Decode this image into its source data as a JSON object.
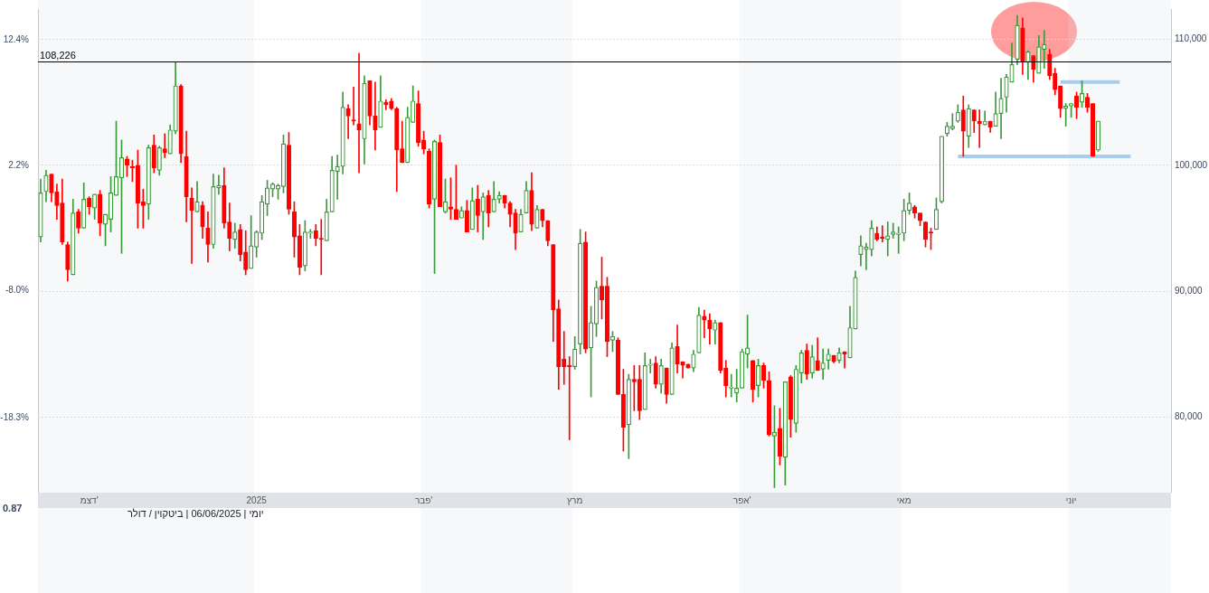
{
  "chart_data": {
    "type": "candlestick",
    "categories": [
      null,
      null,
      null,
      null,
      null,
      null,
      null,
      null,
      null,
      "דצמ'",
      null,
      null,
      null,
      null,
      null,
      null,
      null,
      null,
      null,
      null,
      null,
      null,
      null,
      null,
      null,
      null,
      null,
      null,
      null,
      null,
      null,
      null,
      null,
      null,
      null,
      null,
      null,
      null,
      null,
      null,
      "2025",
      null,
      null,
      null,
      null,
      null,
      null,
      null,
      null,
      null,
      null,
      null,
      null,
      null,
      null,
      null,
      null,
      null,
      null,
      null,
      null,
      null,
      null,
      null,
      null,
      null,
      null,
      null,
      null,
      null,
      null,
      "פבר'",
      null,
      null,
      null,
      null,
      null,
      null,
      null,
      null,
      null,
      null,
      null,
      null,
      null,
      null,
      null,
      null,
      null,
      null,
      null,
      null,
      null,
      null,
      null,
      null,
      null,
      null,
      null,
      "מרץ",
      null,
      null,
      null,
      null,
      null,
      null,
      null,
      null,
      null,
      null,
      null,
      null,
      null,
      null,
      null,
      null,
      null,
      null,
      null,
      null,
      null,
      null,
      null,
      null,
      null,
      null,
      null,
      null,
      null,
      null,
      "אפר'",
      null,
      null,
      null,
      null,
      null,
      null,
      null,
      null,
      null,
      null,
      null,
      null,
      null,
      null,
      null,
      null,
      null,
      null,
      null,
      null,
      null,
      null,
      null,
      null,
      null,
      null,
      null,
      null,
      null,
      "מאי",
      null,
      null,
      null,
      null,
      null,
      null,
      null,
      null,
      null,
      null,
      null,
      null,
      null,
      null,
      null,
      null,
      null,
      null,
      null,
      null,
      null,
      null,
      null,
      null,
      null,
      null,
      null,
      null,
      null,
      null,
      "יוני",
      null,
      null,
      null,
      null,
      null,
      null,
      null,
      null,
      null,
      null,
      null,
      null,
      null,
      null,
      null,
      null,
      null,
      null
    ],
    "ohlc": [
      [
        94300,
        98900,
        93900,
        97800
      ],
      [
        97900,
        99600,
        97100,
        99200
      ],
      [
        99300,
        99300,
        97100,
        97800
      ],
      [
        97900,
        98500,
        95700,
        96800
      ],
      [
        97000,
        98900,
        93700,
        93900
      ],
      [
        93700,
        93900,
        90800,
        91700
      ],
      [
        91300,
        97300,
        91300,
        96200
      ],
      [
        96300,
        96500,
        94600,
        95000
      ],
      [
        95000,
        98600,
        95000,
        97300
      ],
      [
        97400,
        97500,
        96100,
        96700
      ],
      [
        96600,
        97700,
        95700,
        97700
      ],
      [
        97700,
        98000,
        94400,
        95400
      ],
      [
        95300,
        96100,
        93600,
        96100
      ],
      [
        95700,
        99100,
        94700,
        97800
      ],
      [
        97600,
        103500,
        97600,
        99100
      ],
      [
        99000,
        102000,
        93000,
        100600
      ],
      [
        100500,
        100700,
        99100,
        100000
      ],
      [
        99900,
        100400,
        98700,
        99800
      ],
      [
        100000,
        101200,
        95000,
        97000
      ],
      [
        97100,
        98100,
        95000,
        96800
      ],
      [
        96900,
        101600,
        95700,
        101400
      ],
      [
        101600,
        102400,
        99400,
        99800
      ],
      [
        99600,
        101500,
        99200,
        101400
      ],
      [
        101300,
        102500,
        100600,
        101000
      ],
      [
        100900,
        103200,
        100900,
        102800
      ],
      [
        102700,
        108200,
        102500,
        106300
      ],
      [
        106300,
        106400,
        100200,
        100900
      ],
      [
        100700,
        102700,
        95500,
        97500
      ],
      [
        97400,
        98200,
        92200,
        96400
      ],
      [
        96300,
        98700,
        96300,
        97100
      ],
      [
        96800,
        97100,
        94200,
        95100
      ],
      [
        95000,
        96300,
        92300,
        93700
      ],
      [
        93700,
        99300,
        93400,
        98300
      ],
      [
        98200,
        99200,
        97700,
        98400
      ],
      [
        98400,
        99800,
        95000,
        95400
      ],
      [
        95500,
        97000,
        93200,
        94200
      ],
      [
        94100,
        95400,
        93400,
        94700
      ],
      [
        94900,
        95300,
        92400,
        92900
      ],
      [
        93100,
        94800,
        91300,
        91700
      ],
      [
        91800,
        96000,
        91800,
        93600
      ],
      [
        93500,
        94800,
        92700,
        94700
      ],
      [
        94600,
        97600,
        94100,
        97100
      ],
      [
        96900,
        98800,
        96000,
        98200
      ],
      [
        98100,
        98600,
        97500,
        98500
      ],
      [
        98100,
        98500,
        97300,
        98400
      ],
      [
        98300,
        102400,
        97800,
        101700
      ],
      [
        101600,
        102600,
        96100,
        96500
      ],
      [
        96300,
        97100,
        92700,
        94300
      ],
      [
        94400,
        95300,
        91300,
        91900
      ],
      [
        92000,
        95600,
        91600,
        94700
      ],
      [
        94600,
        94900,
        94200,
        94700
      ],
      [
        94800,
        95300,
        93600,
        94200
      ],
      [
        94200,
        95700,
        91300,
        94100
      ],
      [
        94000,
        97300,
        94000,
        96300
      ],
      [
        96300,
        100700,
        96300,
        99600
      ],
      [
        99500,
        100800,
        97300,
        99900
      ],
      [
        99900,
        105800,
        99300,
        104600
      ],
      [
        104500,
        104800,
        102100,
        103900
      ],
      [
        103600,
        106200,
        103200,
        103500
      ],
      [
        103300,
        108900,
        99400,
        102800
      ],
      [
        102100,
        107100,
        100100,
        106500
      ],
      [
        106700,
        106700,
        103200,
        103900
      ],
      [
        103900,
        106600,
        101200,
        102800
      ],
      [
        103000,
        107100,
        103000,
        105100
      ],
      [
        105000,
        105200,
        104400,
        104800
      ],
      [
        105100,
        105300,
        104400,
        104500
      ],
      [
        104500,
        104600,
        97900,
        101200
      ],
      [
        101300,
        103500,
        100200,
        100200
      ],
      [
        100200,
        104600,
        100200,
        103800
      ],
      [
        103400,
        106300,
        103400,
        105100
      ],
      [
        104900,
        105900,
        101500,
        101800
      ],
      [
        102000,
        102700,
        100900,
        101300
      ],
      [
        101100,
        101300,
        96600,
        96900
      ],
      [
        97300,
        102000,
        91400,
        101900
      ],
      [
        101800,
        102400,
        96700,
        96700
      ],
      [
        96300,
        98900,
        96200,
        97100
      ],
      [
        96700,
        99000,
        95700,
        96500
      ],
      [
        96500,
        100000,
        95700,
        95700
      ],
      [
        95800,
        96700,
        95800,
        96400
      ],
      [
        96400,
        97200,
        94700,
        94700
      ],
      [
        94900,
        98200,
        94900,
        97200
      ],
      [
        97300,
        98400,
        94700,
        96000
      ],
      [
        96300,
        97800,
        94100,
        97500
      ],
      [
        97600,
        98000,
        95100,
        96200
      ],
      [
        96300,
        98700,
        96300,
        97300
      ],
      [
        97300,
        97900,
        97000,
        97600
      ],
      [
        97600,
        97600,
        96600,
        97000
      ],
      [
        97000,
        97100,
        95100,
        96100
      ],
      [
        96200,
        96500,
        93300,
        94600
      ],
      [
        94700,
        96500,
        94700,
        96100
      ],
      [
        96200,
        98700,
        96200,
        98000
      ],
      [
        98000,
        99400,
        94800,
        95300
      ],
      [
        95000,
        96800,
        95000,
        96500
      ],
      [
        96500,
        96500,
        95100,
        95600
      ],
      [
        95600,
        95600,
        93600,
        94000
      ],
      [
        93700,
        93700,
        86000,
        88500
      ],
      [
        88600,
        89300,
        82200,
        84000
      ],
      [
        84600,
        86800,
        82600,
        84000
      ],
      [
        84100,
        84800,
        78200,
        84000
      ],
      [
        84000,
        86400,
        83800,
        85400
      ],
      [
        85800,
        94900,
        85000,
        93800
      ],
      [
        93900,
        94700,
        85100,
        85400
      ],
      [
        85500,
        88800,
        81600,
        87500
      ],
      [
        87400,
        90800,
        86400,
        90300
      ],
      [
        90400,
        92700,
        87800,
        89300
      ],
      [
        90400,
        91100,
        84800,
        86000
      ],
      [
        86100,
        86800,
        85200,
        86400
      ],
      [
        86100,
        86300,
        81800,
        81800
      ],
      [
        81800,
        83800,
        77300,
        79200
      ],
      [
        79400,
        83400,
        76700,
        83000
      ],
      [
        83000,
        84100,
        80500,
        82800
      ],
      [
        83000,
        84100,
        79800,
        80500
      ],
      [
        80600,
        85100,
        80600,
        84100
      ],
      [
        84100,
        84600,
        83500,
        84200
      ],
      [
        84300,
        84800,
        82300,
        82600
      ],
      [
        82600,
        84600,
        81900,
        84100
      ],
      [
        83900,
        83900,
        81100,
        81800
      ],
      [
        81800,
        85900,
        81800,
        85500
      ],
      [
        85600,
        87300,
        83500,
        84200
      ],
      [
        84400,
        84400,
        83100,
        84100
      ],
      [
        84200,
        84200,
        83900,
        83900
      ],
      [
        83900,
        85300,
        83600,
        85000
      ],
      [
        85100,
        88700,
        85100,
        88100
      ],
      [
        88000,
        88500,
        86300,
        87700
      ],
      [
        87700,
        88200,
        85800,
        87000
      ],
      [
        86900,
        87700,
        85800,
        87500
      ],
      [
        87500,
        87500,
        83500,
        83700
      ],
      [
        83900,
        84500,
        81600,
        82500
      ],
      [
        82300,
        83400,
        81600,
        82400
      ],
      [
        81900,
        83800,
        81200,
        82300
      ],
      [
        82300,
        85400,
        82300,
        85200
      ],
      [
        85000,
        88100,
        83900,
        85500
      ],
      [
        84500,
        84500,
        81200,
        82200
      ],
      [
        82500,
        84600,
        81600,
        84100
      ],
      [
        84100,
        84300,
        82300,
        82900
      ],
      [
        82900,
        83600,
        78500,
        78600
      ],
      [
        78500,
        80900,
        74400,
        78800
      ],
      [
        79100,
        80700,
        76200,
        76900
      ],
      [
        76800,
        82800,
        74600,
        82800
      ],
      [
        83200,
        83300,
        78400,
        79800
      ],
      [
        79500,
        84100,
        78800,
        83800
      ],
      [
        83500,
        85300,
        82700,
        85100
      ],
      [
        85300,
        85800,
        83000,
        83400
      ],
      [
        83500,
        85700,
        83100,
        84800
      ],
      [
        84500,
        86300,
        83700,
        83700
      ],
      [
        83800,
        85400,
        83000,
        84300
      ],
      [
        84500,
        85400,
        83800,
        85000
      ],
      [
        84900,
        84900,
        84300,
        84400
      ],
      [
        84500,
        85500,
        84300,
        85100
      ],
      [
        85200,
        85200,
        83900,
        85000
      ],
      [
        84700,
        88800,
        84700,
        87100
      ],
      [
        87000,
        91600,
        87000,
        91100
      ],
      [
        92900,
        94400,
        92000,
        93600
      ],
      [
        93300,
        93800,
        91700,
        93500
      ],
      [
        93300,
        95600,
        92800,
        95000
      ],
      [
        94600,
        95100,
        94000,
        94100
      ],
      [
        94300,
        95200,
        93900,
        94200
      ],
      [
        94100,
        95500,
        92800,
        94400
      ],
      [
        94500,
        95400,
        94200,
        94700
      ],
      [
        94500,
        95100,
        93000,
        94600
      ],
      [
        94600,
        97300,
        94000,
        96400
      ],
      [
        96400,
        97800,
        96100,
        97000
      ],
      [
        96700,
        96800,
        95800,
        96200
      ],
      [
        96200,
        96200,
        95200,
        95600
      ],
      [
        95500,
        95500,
        93500,
        94100
      ],
      [
        94700,
        95000,
        93300,
        94600
      ],
      [
        94900,
        97400,
        94900,
        96500
      ],
      [
        97100,
        102300,
        97000,
        102300
      ],
      [
        102500,
        103400,
        102300,
        103100
      ],
      [
        102900,
        104100,
        102800,
        103100
      ],
      [
        103500,
        104800,
        103400,
        104200
      ],
      [
        104400,
        105500,
        100700,
        102700
      ],
      [
        102300,
        104800,
        101400,
        104500
      ],
      [
        104400,
        104400,
        102600,
        103500
      ],
      [
        103500,
        104400,
        101400,
        103300
      ],
      [
        103200,
        104300,
        103200,
        103500
      ],
      [
        103500,
        103500,
        102600,
        103000
      ],
      [
        103100,
        105800,
        103100,
        104100
      ],
      [
        104100,
        106900,
        102100,
        105300
      ],
      [
        105400,
        107200,
        104200,
        107000
      ],
      [
        106600,
        109700,
        106600,
        108000
      ],
      [
        108400,
        111900,
        108000,
        111100
      ],
      [
        110900,
        111700,
        107200,
        108200
      ],
      [
        108200,
        109100,
        106800,
        109000
      ],
      [
        108700,
        108700,
        106600,
        107600
      ],
      [
        107300,
        110300,
        107300,
        109400
      ],
      [
        109200,
        110700,
        107700,
        109600
      ],
      [
        108800,
        109200,
        106800,
        107100
      ],
      [
        107300,
        107700,
        105600,
        106000
      ],
      [
        106300,
        106300,
        103800,
        104500
      ],
      [
        104500,
        104900,
        103100,
        104700
      ],
      [
        104700,
        104900,
        103800,
        104900
      ],
      [
        105500,
        105800,
        103700,
        104600
      ],
      [
        105000,
        106700,
        104600,
        105700
      ],
      [
        105400,
        105700,
        104200,
        104600
      ],
      [
        104900,
        104900,
        100700,
        100700
      ],
      [
        101200,
        103500,
        101100,
        103500
      ],
      null,
      null,
      null,
      null,
      null,
      null,
      null,
      null,
      null,
      null,
      null,
      null,
      null
    ],
    "series": [
      {
        "type": "line",
        "color": "#a8cdf0",
        "values": [
          null,
          null,
          null,
          null,
          null,
          null,
          null,
          null,
          null,
          null,
          null,
          null,
          null,
          null,
          null,
          null,
          null,
          null,
          null,
          null,
          null,
          null,
          null,
          null,
          null,
          null,
          null,
          null,
          null,
          null,
          null,
          null,
          null,
          null,
          null,
          null,
          null,
          null,
          null,
          null,
          null,
          null,
          null,
          null,
          null,
          null,
          null,
          null,
          null,
          null,
          null,
          null,
          null,
          null,
          null,
          null,
          null,
          null,
          null,
          null,
          null,
          null,
          null,
          null,
          null,
          null,
          null,
          null,
          null,
          null,
          null,
          null,
          null,
          null,
          null,
          null,
          null,
          null,
          null,
          null,
          null,
          null,
          null,
          null,
          null,
          null,
          null,
          null,
          null,
          null,
          null,
          null,
          null,
          null,
          null,
          null,
          null,
          null,
          null,
          null,
          null,
          null,
          null,
          null,
          null,
          null,
          null,
          null,
          null,
          null,
          null,
          null,
          null,
          null,
          null,
          null,
          null,
          null,
          null,
          null,
          null,
          null,
          null,
          null,
          null,
          null,
          null,
          null,
          null,
          null,
          null,
          null,
          null,
          null,
          null,
          null,
          null,
          null,
          null,
          null,
          null,
          null,
          null,
          null,
          null,
          null,
          null,
          null,
          null,
          null,
          null,
          null,
          null,
          null,
          null,
          null,
          null,
          null,
          null,
          null,
          null,
          null,
          null,
          null,
          null,
          null,
          null,
          null,
          null,
          null,
          100700,
          100700,
          100700,
          100700,
          100700,
          100700,
          100700,
          100700,
          100700,
          100700,
          100700,
          100700,
          100700,
          100700,
          100700,
          100700,
          100700,
          100700,
          100700,
          100700,
          100700,
          100700,
          100700,
          100700,
          100700,
          100700,
          100700,
          100700,
          100700,
          100700,
          100700,
          100700,
          100700,
          null,
          null,
          null,
          null,
          null,
          null,
          null
        ]
      },
      {
        "type": "line",
        "color": "#a8cdf0",
        "values": [
          null,
          null,
          null,
          null,
          null,
          null,
          null,
          null,
          null,
          null,
          null,
          null,
          null,
          null,
          null,
          null,
          null,
          null,
          null,
          null,
          null,
          null,
          null,
          null,
          null,
          null,
          null,
          null,
          null,
          null,
          null,
          null,
          null,
          null,
          null,
          null,
          null,
          null,
          null,
          null,
          null,
          null,
          null,
          null,
          null,
          null,
          null,
          null,
          null,
          null,
          null,
          null,
          null,
          null,
          null,
          null,
          null,
          null,
          null,
          null,
          null,
          null,
          null,
          null,
          null,
          null,
          null,
          null,
          null,
          null,
          null,
          null,
          null,
          null,
          null,
          null,
          null,
          null,
          null,
          null,
          null,
          null,
          null,
          null,
          null,
          null,
          null,
          null,
          null,
          null,
          null,
          null,
          null,
          null,
          null,
          null,
          null,
          null,
          null,
          null,
          null,
          null,
          null,
          null,
          null,
          null,
          null,
          null,
          null,
          null,
          null,
          null,
          null,
          null,
          null,
          null,
          null,
          null,
          null,
          null,
          null,
          null,
          null,
          null,
          null,
          null,
          null,
          null,
          null,
          null,
          null,
          null,
          null,
          null,
          null,
          null,
          null,
          null,
          null,
          null,
          null,
          null,
          null,
          null,
          null,
          null,
          null,
          null,
          null,
          null,
          null,
          null,
          null,
          null,
          null,
          null,
          null,
          null,
          null,
          null,
          null,
          null,
          null,
          null,
          null,
          null,
          null,
          null,
          null,
          null,
          null,
          null,
          null,
          null,
          null,
          null,
          null,
          null,
          null,
          null,
          null,
          null,
          null,
          null,
          null,
          null,
          null,
          null,
          null,
          106600,
          106600,
          106600,
          106600,
          106600,
          106600,
          106600,
          106600,
          106600,
          106600,
          106600,
          106600,
          null,
          null,
          null,
          null,
          null,
          null,
          null,
          null,
          null
        ]
      }
    ],
    "ylim": [
      74000,
      112400
    ],
    "yticks": [
      {
        "value": 80000,
        "label": "80,000"
      },
      {
        "value": 90000,
        "label": "90,000"
      },
      {
        "value": 100000,
        "label": "100,000"
      },
      {
        "value": 110000,
        "label": "110,000"
      }
    ],
    "y2lim": [
      -24.4,
      14.9
    ],
    "y2ticks": [
      {
        "value": -18.3,
        "label": "-18.3%"
      },
      {
        "value": -8.0,
        "label": "-8.0%"
      },
      {
        "value": 2.2,
        "label": "2.2%"
      },
      {
        "value": 12.4,
        "label": "12.4%"
      }
    ],
    "grid": "y",
    "ref_lines": [
      {
        "axis": "y",
        "value": 108226,
        "label": "108,226",
        "color": "#000000"
      }
    ],
    "annotations": [
      "0.87",
      "יומי | 06/06/2025 | ביטקוין / דולר"
    ]
  }
}
